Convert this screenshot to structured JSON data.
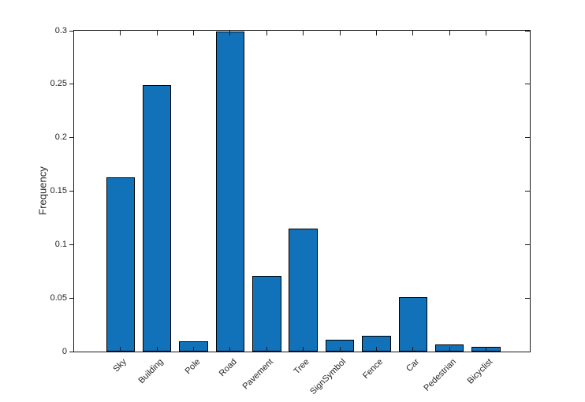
{
  "figure": {
    "background_color": "#ffffff"
  },
  "chart_data": {
    "type": "bar",
    "title": "",
    "xlabel": "",
    "ylabel": "Frequency",
    "categories": [
      "Sky",
      "Building",
      "Pole",
      "Road",
      "Pavement",
      "Tree",
      "SignSymbol",
      "Fence",
      "Car",
      "Pedestrian",
      "Bicyclist"
    ],
    "values": [
      0.163,
      0.249,
      0.0097,
      0.299,
      0.0706,
      0.115,
      0.0109,
      0.0144,
      0.0511,
      0.0064,
      0.0044
    ],
    "ylim": [
      0,
      0.3
    ],
    "yticks": [
      0,
      0.05,
      0.1,
      0.15,
      0.2,
      0.25,
      0.3
    ],
    "ytick_labels": [
      "0",
      "0.05",
      "0.1",
      "0.15",
      "0.2",
      "0.25",
      "0.3"
    ],
    "xtick_label_rotation_deg": 45,
    "grid": false,
    "legend": null,
    "bar_color": "#1272B9",
    "bar_edge_color": "#000000",
    "axis_color": "#1a1a1a",
    "tick_label_color": "#262626",
    "box": "on",
    "tick_style": "ticks mirrored on top and right, pointing into plot"
  }
}
